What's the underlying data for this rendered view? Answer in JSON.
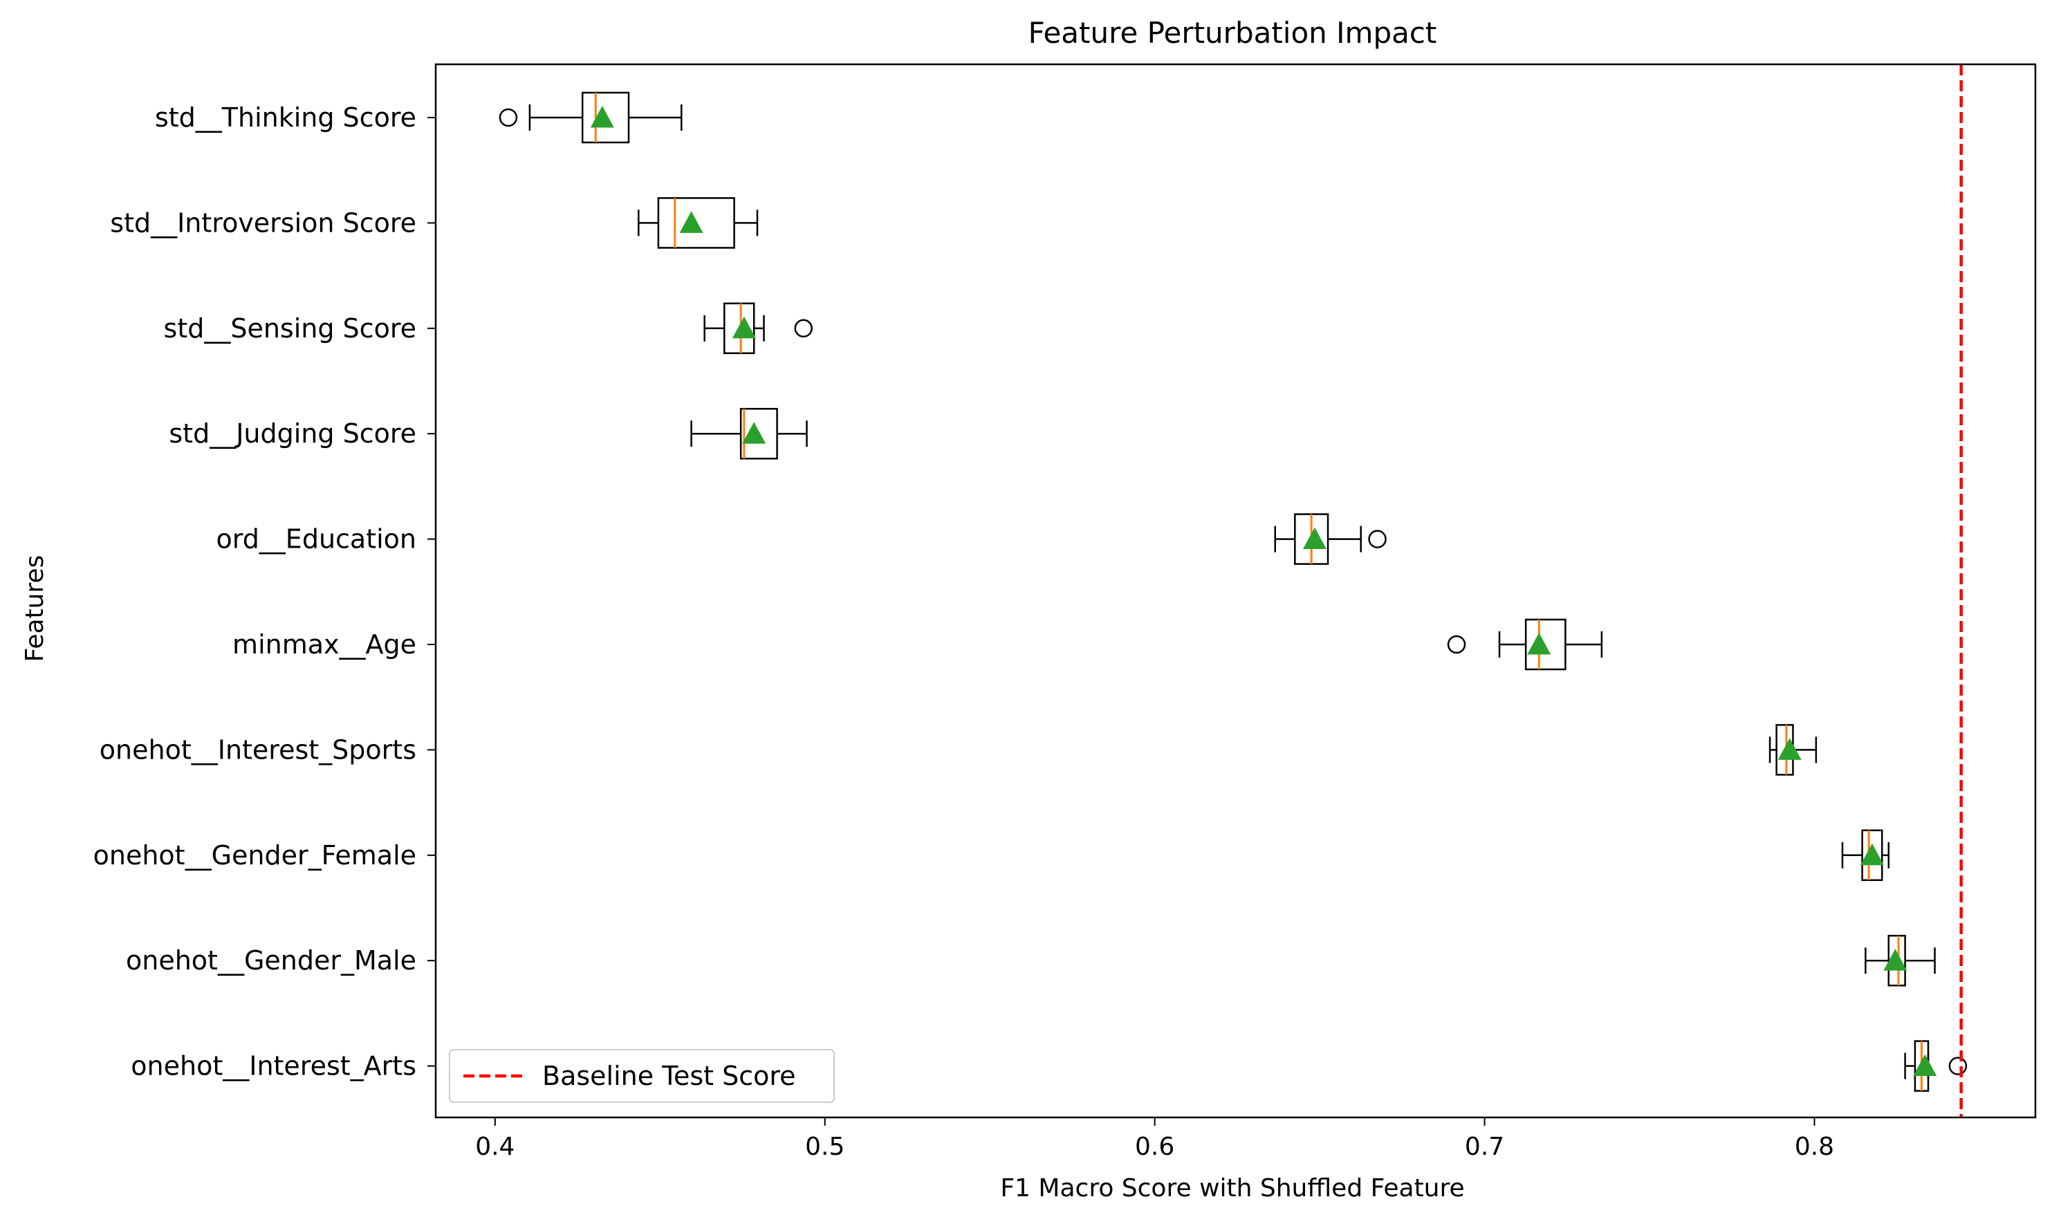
{
  "chart_data": {
    "type": "boxplot",
    "orientation": "horizontal",
    "title": "Feature Perturbation Impact",
    "xlabel": "F1 Macro Score with Shuffled Feature",
    "ylabel": "Features",
    "xlim": [
      0.382,
      0.867
    ],
    "xticks": [
      0.4,
      0.5,
      0.6,
      0.7,
      0.8
    ],
    "xtick_labels": [
      "0.4",
      "0.5",
      "0.6",
      "0.7",
      "0.8"
    ],
    "grid": false,
    "legend": {
      "placement": "bottom-left",
      "entries": [
        {
          "label": "Baseline Test Score",
          "style": "dashed",
          "color": "#ff0000"
        }
      ]
    },
    "baseline": {
      "label": "Baseline Test Score",
      "value": 0.8445
    },
    "colors": {
      "box": "#000000",
      "median": "#ff7f0e",
      "mean": "#2ca02c",
      "baseline": "#ff0000"
    },
    "features": [
      {
        "name": "std__Thinking Score",
        "whisker_low": 0.4105,
        "q1": 0.4265,
        "median": 0.4305,
        "q3": 0.4405,
        "whisker_high": 0.4565,
        "mean": 0.4325,
        "outliers": [
          0.404
        ]
      },
      {
        "name": "std__Introversion Score",
        "whisker_low": 0.4435,
        "q1": 0.4495,
        "median": 0.4545,
        "q3": 0.4725,
        "whisker_high": 0.4795,
        "mean": 0.4595,
        "outliers": []
      },
      {
        "name": "std__Sensing Score",
        "whisker_low": 0.4635,
        "q1": 0.4695,
        "median": 0.4745,
        "q3": 0.4785,
        "whisker_high": 0.4815,
        "mean": 0.4755,
        "outliers": [
          0.4935
        ]
      },
      {
        "name": "std__Judging Score",
        "whisker_low": 0.4595,
        "q1": 0.4745,
        "median": 0.4755,
        "q3": 0.4855,
        "whisker_high": 0.4945,
        "mean": 0.4785,
        "outliers": []
      },
      {
        "name": "ord__Education",
        "whisker_low": 0.6365,
        "q1": 0.6425,
        "median": 0.6475,
        "q3": 0.6525,
        "whisker_high": 0.6625,
        "mean": 0.6485,
        "outliers": [
          0.6675
        ]
      },
      {
        "name": "minmax__Age",
        "whisker_low": 0.7045,
        "q1": 0.7125,
        "median": 0.7165,
        "q3": 0.7245,
        "whisker_high": 0.7355,
        "mean": 0.7165,
        "outliers": [
          0.6915
        ]
      },
      {
        "name": "onehot__Interest_Sports",
        "whisker_low": 0.7865,
        "q1": 0.7885,
        "median": 0.7915,
        "q3": 0.7935,
        "whisker_high": 0.8005,
        "mean": 0.7925,
        "outliers": []
      },
      {
        "name": "onehot__Gender_Female",
        "whisker_low": 0.8085,
        "q1": 0.8145,
        "median": 0.8165,
        "q3": 0.8205,
        "whisker_high": 0.8225,
        "mean": 0.8175,
        "outliers": []
      },
      {
        "name": "onehot__Gender_Male",
        "whisker_low": 0.8155,
        "q1": 0.8225,
        "median": 0.8255,
        "q3": 0.8275,
        "whisker_high": 0.8365,
        "mean": 0.8245,
        "outliers": []
      },
      {
        "name": "onehot__Interest_Arts",
        "whisker_low": 0.8275,
        "q1": 0.8305,
        "median": 0.8325,
        "q3": 0.8345,
        "whisker_high": 0.8345,
        "mean": 0.8335,
        "outliers": [
          0.8435
        ]
      }
    ]
  }
}
